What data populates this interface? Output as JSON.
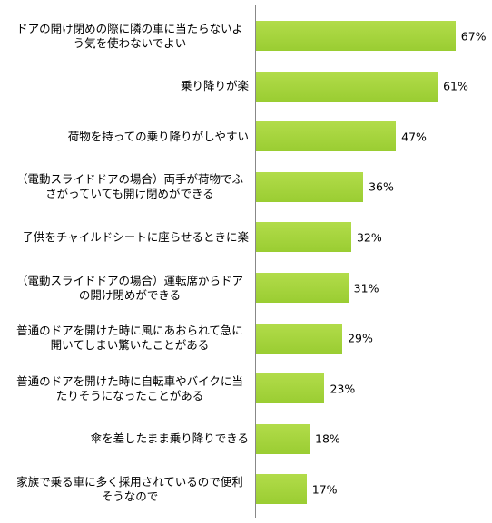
{
  "chart_data": {
    "type": "bar",
    "orientation": "horizontal",
    "color": "#9acd32",
    "categories": [
      "ドアの開け閉めの際に隣の車に当たらないよう気を使わないでよい",
      "乗り降りが楽",
      "荷物を持っての乗り降りがしやすい",
      "（電動スライドドアの場合）両手が荷物でふさがっていても開け閉めができる",
      "子供をチャイルドシートに座らせるときに楽",
      "（電動スライドドアの場合）運転席からドアの開け閉めができる",
      "普通のドアを開けた時に風にあおられて急に開いてしまい驚いたことがある",
      "普通のドアを開けた時に自転車やバイクに当たりそうになったことがある",
      "傘を差したまま乗り降りできる",
      "家族で乗る車に多く採用されているので便利そうなので"
    ],
    "values": [
      67,
      61,
      47,
      36,
      32,
      31,
      29,
      23,
      18,
      17
    ],
    "value_labels": [
      "67%",
      "61%",
      "47%",
      "36%",
      "32%",
      "31%",
      "29%",
      "23%",
      "18%",
      "17%"
    ]
  }
}
